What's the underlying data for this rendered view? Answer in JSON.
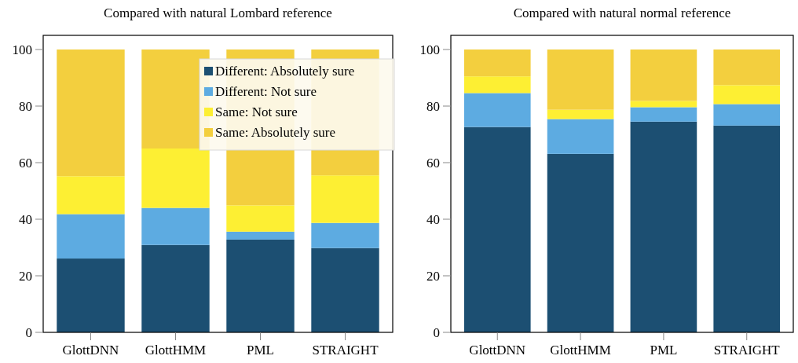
{
  "chart_data": [
    {
      "type": "bar",
      "stacked": true,
      "title": "Compared with natural Lombard reference",
      "categories": [
        "GlottDNN",
        "GlottHMM",
        "PML",
        "STRAIGHT"
      ],
      "ylim": [
        0,
        105
      ],
      "yticks": [
        0,
        20,
        40,
        60,
        80,
        100
      ],
      "legend": "top right",
      "series": [
        {
          "name": "Different: Absolutely sure",
          "color": "#1c4f72",
          "values": [
            26.1,
            30.9,
            32.8,
            29.8
          ]
        },
        {
          "name": "Different: Not sure",
          "color": "#5dabe1",
          "values": [
            15.7,
            13.1,
            2.8,
            8.9
          ]
        },
        {
          "name": "Same: Not sure",
          "color": "#fdef33",
          "values": [
            13.4,
            21.0,
            9.3,
            16.8
          ]
        },
        {
          "name": "Same: Absolutely sure",
          "color": "#f3cf3e",
          "values": [
            44.8,
            35.0,
            55.1,
            44.5
          ]
        }
      ]
    },
    {
      "type": "bar",
      "stacked": true,
      "title": "Compared with natural normal reference",
      "categories": [
        "GlottDNN",
        "GlottHMM",
        "PML",
        "STRAIGHT"
      ],
      "ylim": [
        0,
        105
      ],
      "yticks": [
        0,
        20,
        40,
        60,
        80,
        100
      ],
      "series": [
        {
          "color": "#1c4f72",
          "values": [
            72.6,
            63.1,
            74.5,
            73.1
          ]
        },
        {
          "color": "#5dabe1",
          "values": [
            12.0,
            12.3,
            5.1,
            7.6
          ]
        },
        {
          "color": "#fdef33",
          "values": [
            5.9,
            3.3,
            2.2,
            6.7
          ]
        },
        {
          "color": "#f3cf3e",
          "values": [
            9.5,
            21.3,
            18.2,
            12.6
          ]
        }
      ]
    }
  ]
}
